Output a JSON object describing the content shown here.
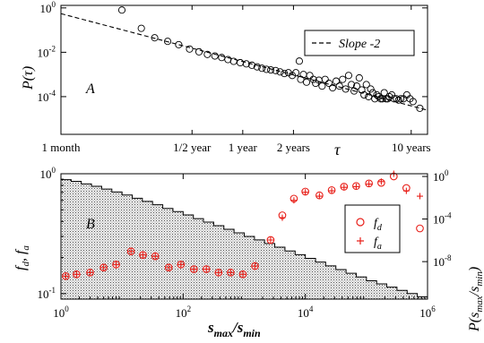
{
  "chart_data": [
    {
      "panel_label": "A",
      "type": "scatter",
      "scale": {
        "x": "log",
        "y": "log"
      },
      "ylabel": "P(τ)",
      "xlabel": "τ",
      "x_ticks": [
        {
          "value": 1,
          "label": "1 month"
        },
        {
          "value": 6,
          "label": "1/2 year"
        },
        {
          "value": 12,
          "label": "1 year"
        },
        {
          "value": 24,
          "label": "2 years"
        },
        {
          "value": 120,
          "label": "10 years"
        }
      ],
      "y_ticks": [
        {
          "value": 1,
          "mant": "10",
          "exp": "0"
        },
        {
          "value": 0.01,
          "mant": "10",
          "exp": "-2"
        },
        {
          "value": 0.0001,
          "mant": "10",
          "exp": "-4"
        }
      ],
      "xlim_months": [
        1,
        150
      ],
      "ylim": [
        2e-06,
        1.3
      ],
      "legend": {
        "label": "Slope -2",
        "style": "dashed",
        "position": "top-right"
      },
      "fit_line": {
        "slope": -2,
        "points": [
          [
            1,
            0.55
          ],
          [
            150,
            2.45e-05
          ]
        ]
      },
      "series": [
        {
          "marker": "open-circle",
          "x_months": [
            2.3,
            3.0,
            3.6,
            4.3,
            5.0,
            5.8,
            6.6,
            7.4,
            8.2,
            9.0,
            9.8,
            10.6,
            11.6,
            12.6,
            13.6,
            14.6,
            15.6,
            16.6,
            17.6,
            18.8,
            20.0,
            21.2,
            22.4,
            23.6,
            24.8,
            26.0,
            26.5,
            27.5,
            28.7,
            30.0,
            31.5,
            32.5,
            34.0,
            35.5,
            37.0,
            39.0,
            41.0,
            43.0,
            45.0,
            47.0,
            49.0,
            51.0,
            53.0,
            55.0,
            57.0,
            59.0,
            61.0,
            63.0,
            65.0,
            67.0,
            69.0,
            71.0,
            73.0,
            75.0,
            77.0,
            79.0,
            81.0,
            83.0,
            85.0,
            87.0,
            89.0,
            92.0,
            95.0,
            98.0,
            101.0,
            104.0,
            108.0,
            113.0,
            118.0,
            123.0,
            135.0
          ],
          "y": [
            0.8,
            0.12,
            0.045,
            0.031,
            0.022,
            0.014,
            0.0105,
            0.008,
            0.0068,
            0.0058,
            0.0047,
            0.0039,
            0.0034,
            0.003,
            0.0026,
            0.0022,
            0.0019,
            0.0017,
            0.0016,
            0.0015,
            0.0013,
            0.0011,
            0.0012,
            0.0009,
            0.0012,
            0.004,
            0.0006,
            0.001,
            0.00045,
            0.0009,
            0.0006,
            0.0004,
            0.00055,
            0.0003,
            0.0006,
            0.0004,
            0.00025,
            0.0005,
            0.0003,
            0.0006,
            0.00022,
            0.0009,
            0.00035,
            0.00018,
            0.0003,
            0.0007,
            0.0002,
            0.00012,
            0.00035,
            0.0001,
            0.00022,
            0.00015,
            8e-05,
            0.00012,
            0.0001,
            8e-05,
            8e-05,
            0.00015,
            8e-05,
            8e-05,
            0.0001,
            0.00012,
            8e-05,
            8e-05,
            7e-05,
            8e-05,
            8e-05,
            0.00012,
            8e-05,
            6e-05,
            3e-05
          ]
        }
      ]
    },
    {
      "panel_label": "B",
      "type": "scatter",
      "scale": {
        "x": "log",
        "y": "log",
        "y2": "log"
      },
      "xlabel": {
        "base": "s",
        "sub1": "max",
        "slash": "/s",
        "sub2": "min"
      },
      "ylabel": {
        "f1": "f",
        "s1": "d",
        "comma": ", ",
        "f2": "f",
        "s2": "a"
      },
      "y2label": {
        "p": "P(",
        "s1": "s",
        "sub1": "max",
        "slash": "/s",
        "sub2": "min",
        "close": ")"
      },
      "x_ticks": [
        {
          "value": 1,
          "mant": "10",
          "exp": "0"
        },
        {
          "value": 100,
          "mant": "10",
          "exp": "2"
        },
        {
          "value": 10000,
          "mant": "10",
          "exp": "4"
        },
        {
          "value": 1000000,
          "mant": "10",
          "exp": "6"
        }
      ],
      "y_ticks": [
        {
          "value": 1,
          "mant": "10",
          "exp": "0"
        },
        {
          "value": 0.1,
          "mant": "10",
          "exp": "-1"
        }
      ],
      "y2_ticks": [
        {
          "value": 1,
          "mant": "10",
          "exp": "0"
        },
        {
          "value": 0.0001,
          "mant": "10",
          "exp": "-4"
        },
        {
          "value": 1e-08,
          "mant": "10",
          "exp": "-8"
        }
      ],
      "xlim": [
        1,
        1000000
      ],
      "ylim": [
        0.09,
        1.0
      ],
      "y2lim": [
        3e-12,
        1.8
      ],
      "colors": {
        "markers": "#e8201a",
        "histogram_fill": "#d3d3d3",
        "histogram_edge": "#000000"
      },
      "legend": {
        "position": "right",
        "entries": [
          {
            "base": "f",
            "sub": "d",
            "marker": "circle"
          },
          {
            "base": "f",
            "sub": "a",
            "marker": "plus"
          }
        ]
      },
      "histogram": {
        "axis": "y2",
        "bin_edges": [
          1,
          1.47,
          2.15,
          3.16,
          4.64,
          6.81,
          10,
          14.7,
          21.5,
          31.6,
          46.4,
          68.1,
          100,
          147,
          215,
          316,
          464,
          681,
          1000,
          1470,
          2150,
          3160,
          4640,
          6810,
          10000,
          14700,
          21500,
          31600,
          46400,
          68100,
          100000,
          147000,
          215000,
          316000,
          464000,
          681000,
          1000000
        ],
        "values": [
          0.5,
          0.35,
          0.2,
          0.12,
          0.065,
          0.035,
          0.018,
          0.009,
          0.0045,
          0.0022,
          0.001,
          0.0005,
          0.00024,
          0.00011,
          5.2e-05,
          2.4e-05,
          1.1e-05,
          5e-06,
          2.3e-06,
          1.1e-06,
          5e-07,
          2.3e-07,
          1e-07,
          4.5e-08,
          2e-08,
          9e-09,
          4e-09,
          1.8e-09,
          8e-10,
          3.6e-10,
          1.6e-10,
          8e-11,
          4e-11,
          2e-11,
          1e-11,
          5e-12
        ]
      },
      "series": [
        {
          "name_base": "f",
          "name_sub": "d",
          "marker": "open-circle",
          "x": [
            1.2,
            1.8,
            3.0,
            5.0,
            8.0,
            14.0,
            22.0,
            35.0,
            58.0,
            92.0,
            150.0,
            240.0,
            380.0,
            600.0,
            950.0,
            1500.0,
            2700.0,
            4200.0,
            6500.0,
            10000.0,
            17000.0,
            27000.0,
            43000.0,
            68000.0,
            110000.0,
            175000.0,
            280000.0,
            450000.0,
            750000.0
          ],
          "y": [
            0.14,
            0.145,
            0.15,
            0.165,
            0.175,
            0.225,
            0.21,
            0.205,
            0.165,
            0.175,
            0.16,
            0.16,
            0.15,
            0.15,
            0.145,
            0.17,
            0.28,
            0.45,
            0.62,
            0.71,
            0.66,
            0.73,
            0.78,
            0.79,
            0.83,
            0.84,
            0.95,
            0.76,
            0.35
          ]
        },
        {
          "name_base": "f",
          "name_sub": "a",
          "marker": "plus",
          "x": [
            1.2,
            1.8,
            3.0,
            5.0,
            8.0,
            14.0,
            22.0,
            35.0,
            58.0,
            92.0,
            150.0,
            240.0,
            380.0,
            600.0,
            950.0,
            1500.0,
            2700.0,
            4200.0,
            6500.0,
            10000.0,
            17000.0,
            27000.0,
            43000.0,
            68000.0,
            110000.0,
            175000.0,
            280000.0,
            450000.0,
            750000.0
          ],
          "y": [
            0.14,
            0.145,
            0.15,
            0.165,
            0.175,
            0.225,
            0.21,
            0.205,
            0.165,
            0.175,
            0.16,
            0.16,
            0.15,
            0.15,
            0.145,
            0.17,
            0.28,
            0.43,
            0.6,
            0.7,
            0.65,
            0.72,
            0.77,
            0.78,
            0.82,
            0.86,
            1.0,
            0.72,
            0.65
          ]
        }
      ]
    }
  ]
}
